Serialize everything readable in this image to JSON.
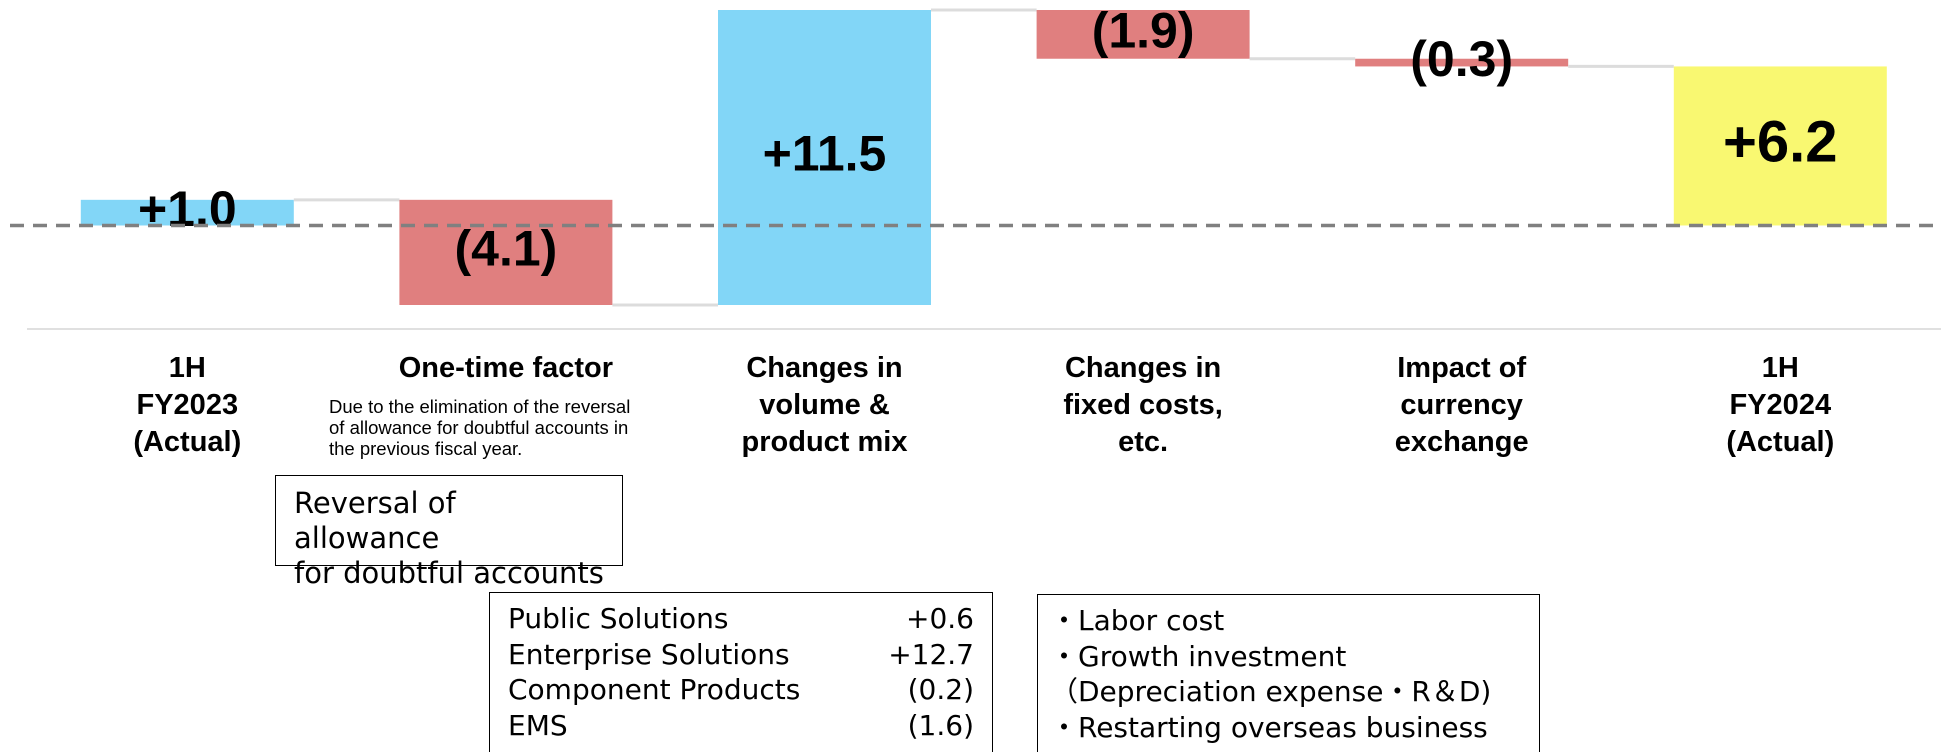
{
  "chart_data": {
    "type": "waterfall",
    "categories": [
      "1H\nFY2023\n(Actual)",
      "One-time factor",
      "Changes in\nvolume &\nproduct mix",
      "Changes in\nfixed costs,\netc.",
      "Impact of\ncurrency\nexchange",
      "1H\nFY2024\n(Actual)"
    ],
    "values": [
      1.0,
      -4.1,
      11.5,
      -1.9,
      -0.3,
      6.2
    ],
    "value_labels": [
      "+1.0",
      "(4.1)",
      "+11.5",
      "(1.9)",
      "(0.3)",
      "+6.2"
    ],
    "is_total": [
      false,
      false,
      false,
      false,
      false,
      true
    ],
    "colors": [
      "#82d6f7",
      "#e07f7f",
      "#82d6f7",
      "#e07f7f",
      "#e07f7f",
      "#f9f871"
    ],
    "annotations": {
      "one_time_note": "Due to the elimination of the reversal\nof allowance for doubtful accounts in\nthe previous fiscal year.",
      "one_time_box": "Reversal of allowance\nfor doubtful accounts",
      "segments": [
        {
          "name": "Public Solutions",
          "value": "+0.6"
        },
        {
          "name": "Enterprise Solutions",
          "value": "+12.7"
        },
        {
          "name": "Component Products",
          "value": "(0.2)"
        },
        {
          "name": "EMS",
          "value": "(1.6)"
        }
      ],
      "fixed_cost_items": [
        "・Labor cost",
        "・Growth investment",
        "（Depreciation expense・R＆D)",
        "・Restarting overseas business"
      ]
    }
  }
}
